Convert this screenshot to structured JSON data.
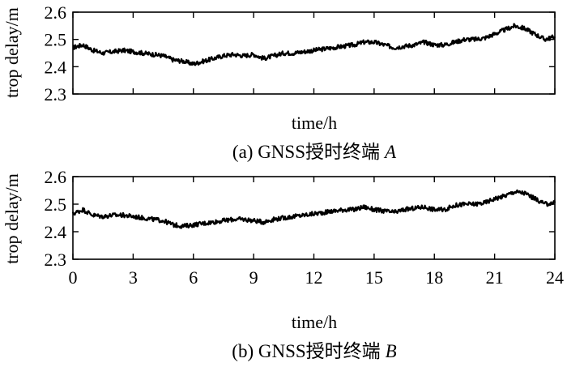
{
  "chart_data": [
    {
      "type": "line",
      "caption": "(a) GNSS授时终端 A",
      "caption_prefix": "(a) GNSS授时终端",
      "caption_italic": "A",
      "xlabel": "time/h",
      "ylabel": "trop delay/m",
      "xlim": [
        0,
        24
      ],
      "ylim": [
        2.3,
        2.6
      ],
      "xticks": [
        0,
        3,
        6,
        9,
        12,
        15,
        18,
        21,
        24
      ],
      "xtick_labels_shown": false,
      "yticks": [
        2.3,
        2.4,
        2.5,
        2.6
      ],
      "ytick_labels": [
        "2.3",
        "2.4",
        "2.5",
        "2.6"
      ],
      "grid": false,
      "series": [
        {
          "x": [
            0,
            0.5,
            1,
            1.5,
            2,
            2.5,
            3,
            3.5,
            4,
            4.5,
            5,
            5.5,
            6,
            6.5,
            7,
            7.5,
            8,
            8.5,
            9,
            9.5,
            10,
            10.5,
            11,
            11.5,
            12,
            12.5,
            13,
            13.5,
            14,
            14.5,
            15,
            15.5,
            16,
            16.5,
            17,
            17.5,
            18,
            18.5,
            19,
            19.5,
            20,
            20.5,
            21,
            21.5,
            22,
            22.5,
            23,
            23.5,
            24
          ],
          "y": [
            2.47,
            2.48,
            2.46,
            2.45,
            2.455,
            2.46,
            2.455,
            2.45,
            2.445,
            2.44,
            2.425,
            2.42,
            2.41,
            2.42,
            2.43,
            2.44,
            2.445,
            2.44,
            2.445,
            2.43,
            2.44,
            2.45,
            2.45,
            2.455,
            2.46,
            2.465,
            2.47,
            2.475,
            2.48,
            2.49,
            2.49,
            2.48,
            2.47,
            2.475,
            2.48,
            2.49,
            2.48,
            2.48,
            2.49,
            2.5,
            2.5,
            2.505,
            2.52,
            2.535,
            2.55,
            2.54,
            2.52,
            2.5,
            2.51
          ]
        }
      ]
    },
    {
      "type": "line",
      "caption": "(b) GNSS授时终端 B",
      "caption_prefix": "(b) GNSS授时终端",
      "caption_italic": "B",
      "xlabel": "time/h",
      "ylabel": "trop delay/m",
      "xlim": [
        0,
        24
      ],
      "ylim": [
        2.3,
        2.6
      ],
      "xticks": [
        0,
        3,
        6,
        9,
        12,
        15,
        18,
        21,
        24
      ],
      "xtick_labels": [
        "0",
        "3",
        "6",
        "9",
        "12",
        "15",
        "18",
        "21",
        "24"
      ],
      "xtick_labels_shown": true,
      "yticks": [
        2.3,
        2.4,
        2.5,
        2.6
      ],
      "ytick_labels": [
        "2.3",
        "2.4",
        "2.5",
        "2.6"
      ],
      "grid": false,
      "series": [
        {
          "x": [
            0,
            0.5,
            1,
            1.5,
            2,
            2.5,
            3,
            3.5,
            4,
            4.5,
            5,
            5.5,
            6,
            6.5,
            7,
            7.5,
            8,
            8.5,
            9,
            9.5,
            10,
            10.5,
            11,
            11.5,
            12,
            12.5,
            13,
            13.5,
            14,
            14.5,
            15,
            15.5,
            16,
            16.5,
            17,
            17.5,
            18,
            18.5,
            19,
            19.5,
            20,
            20.5,
            21,
            21.5,
            22,
            22.5,
            23,
            23.5,
            24
          ],
          "y": [
            2.465,
            2.48,
            2.46,
            2.455,
            2.46,
            2.46,
            2.455,
            2.45,
            2.445,
            2.44,
            2.425,
            2.42,
            2.425,
            2.43,
            2.435,
            2.44,
            2.445,
            2.445,
            2.44,
            2.435,
            2.445,
            2.45,
            2.455,
            2.46,
            2.465,
            2.47,
            2.475,
            2.48,
            2.48,
            2.49,
            2.48,
            2.475,
            2.47,
            2.48,
            2.485,
            2.49,
            2.48,
            2.48,
            2.495,
            2.5,
            2.5,
            2.505,
            2.52,
            2.53,
            2.545,
            2.54,
            2.52,
            2.5,
            2.505
          ]
        }
      ]
    }
  ]
}
